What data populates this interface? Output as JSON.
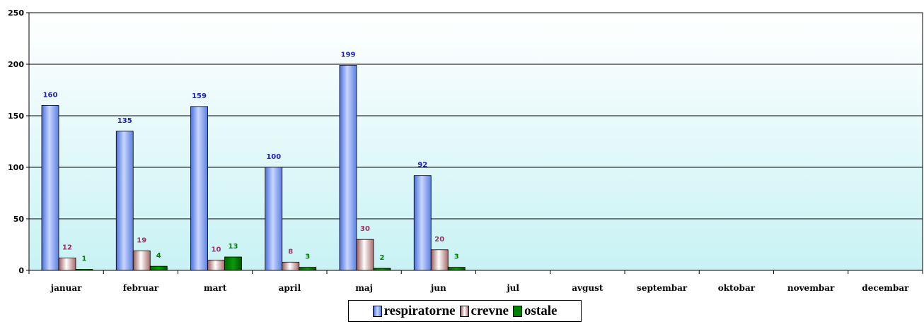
{
  "chart_data": {
    "type": "bar",
    "categories": [
      "januar",
      "februar",
      "mart",
      "april",
      "maj",
      "jun",
      "jul",
      "avgust",
      "septembar",
      "oktobar",
      "novembar",
      "decembar"
    ],
    "series": [
      {
        "name": "respiratorne",
        "values": [
          160,
          135,
          159,
          100,
          199,
          92,
          null,
          null,
          null,
          null,
          null,
          null
        ],
        "color": "#7f9cf0",
        "label_color": "#1b1fcc"
      },
      {
        "name": "crevne",
        "values": [
          12,
          19,
          10,
          8,
          30,
          20,
          null,
          null,
          null,
          null,
          null,
          null
        ],
        "color": "#e8c8c4",
        "label_color": "#993366"
      },
      {
        "name": "ostale",
        "values": [
          1,
          4,
          13,
          3,
          2,
          3,
          null,
          null,
          null,
          null,
          null,
          null
        ],
        "color": "#008000",
        "label_color": "#008000"
      }
    ],
    "title": "",
    "xlabel": "",
    "ylabel": "",
    "ylim": [
      0,
      250
    ],
    "yticks": [
      0,
      50,
      100,
      150,
      200,
      250
    ],
    "grid": true,
    "legend": "bottom"
  }
}
